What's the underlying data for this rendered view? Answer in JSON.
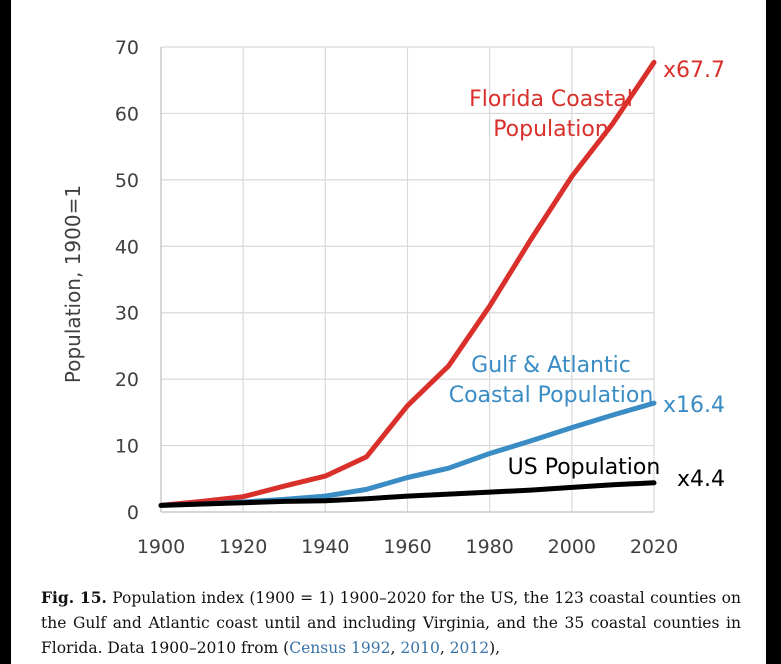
{
  "chart_data": {
    "type": "line",
    "ylabel": "Population, 1900=1",
    "ylim": [
      0,
      70
    ],
    "yticks": [
      0,
      10,
      20,
      30,
      40,
      50,
      60,
      70
    ],
    "xlim": [
      1900,
      2020
    ],
    "xticks": [
      1900,
      1920,
      1940,
      1960,
      1980,
      2000,
      2020
    ],
    "grid": true,
    "series": [
      {
        "name": "Florida Coastal Population",
        "name_lines": [
          "Florida Coastal",
          "Population"
        ],
        "color": "#d9302b",
        "end_label": "x67.7",
        "x": [
          1900,
          1910,
          1920,
          1930,
          1940,
          1950,
          1960,
          1970,
          1980,
          1990,
          2000,
          2010,
          2020
        ],
        "values": [
          1,
          1.6,
          2.3,
          3.9,
          5.4,
          8.3,
          16,
          22,
          31,
          41,
          50.5,
          58.5,
          67.7
        ]
      },
      {
        "name": "Gulf & Atlantic Coastal Population",
        "name_lines": [
          "Gulf & Atlantic",
          "Coastal Population"
        ],
        "color": "#3a8cc4",
        "end_label": "x16.4",
        "x": [
          1900,
          1910,
          1920,
          1930,
          1940,
          1950,
          1960,
          1970,
          1980,
          1990,
          2000,
          2010,
          2020
        ],
        "values": [
          1,
          1.2,
          1.5,
          1.9,
          2.4,
          3.4,
          5.2,
          6.6,
          8.8,
          10.7,
          12.7,
          14.6,
          16.4
        ]
      },
      {
        "name": "US Population",
        "name_lines": [
          "US Population"
        ],
        "color": "#000000",
        "end_label": "x4.4",
        "x": [
          1900,
          1910,
          1920,
          1930,
          1940,
          1950,
          1960,
          1970,
          1980,
          1990,
          2000,
          2010,
          2020
        ],
        "values": [
          1,
          1.2,
          1.4,
          1.6,
          1.7,
          2.0,
          2.4,
          2.7,
          3.0,
          3.3,
          3.7,
          4.1,
          4.4
        ]
      }
    ]
  },
  "caption": {
    "label": "Fig. 15.",
    "text_before": " Population index (1900 = 1) 1900–2020 for the US, the 123 coastal counties on the Gulf and Atlantic coast until and including Virginia, and the 35 coastal counties in Florida. Data 1900–2010 from (",
    "cite1": "Census 1992",
    "sep1": ", ",
    "cite2": "2010",
    "sep2": ", ",
    "cite3": "2012",
    "text_after": "),"
  }
}
